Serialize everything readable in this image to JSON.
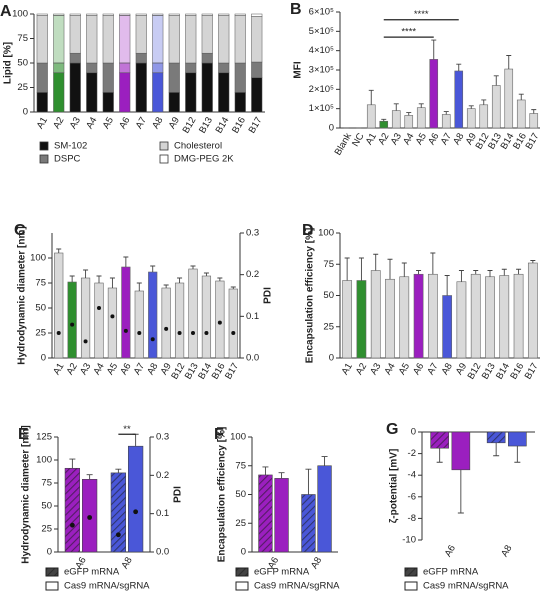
{
  "chart_data": [
    {
      "type": "stacked_bar",
      "panel": "A",
      "ylabel": "Lipid [%]",
      "categories": [
        "A1",
        "A2",
        "A3",
        "A4",
        "A5",
        "A6",
        "A7",
        "A8",
        "A9",
        "B12",
        "B13",
        "B14",
        "B16",
        "B17"
      ],
      "highlight_colors": [
        null,
        "#2f8f2f",
        null,
        null,
        null,
        "#9b1fbf",
        null,
        "#4a57d8",
        null,
        null,
        null,
        null,
        null,
        null
      ],
      "series": [
        {
          "name": "SM-102",
          "color": "#111111",
          "values": [
            20,
            40,
            50,
            40,
            20,
            40,
            50,
            40,
            20,
            40,
            50,
            40,
            20,
            35
          ]
        },
        {
          "name": "DSPC",
          "color": "#7a7a7a",
          "values": [
            30,
            10,
            10,
            10,
            30,
            10,
            10,
            10,
            30,
            10,
            10,
            10,
            30,
            16
          ]
        },
        {
          "name": "Cholesterol",
          "color": "#d4d4d4",
          "values": [
            48.5,
            48.5,
            38.5,
            48.5,
            48.5,
            48.5,
            38.5,
            48.5,
            48.5,
            48.5,
            38.5,
            48.5,
            48.5,
            46.5
          ]
        },
        {
          "name": "DMG-PEG 2K",
          "color": "#ffffff",
          "values": [
            1.5,
            1.5,
            1.5,
            1.5,
            1.5,
            1.5,
            1.5,
            1.5,
            1.5,
            1.5,
            1.5,
            1.5,
            1.5,
            2.5
          ]
        }
      ],
      "ylim": [
        0,
        100
      ],
      "yticks": [
        0,
        25,
        50,
        75,
        100
      ]
    },
    {
      "type": "bar",
      "panel": "B",
      "ylabel": "MFI",
      "categories": [
        "Blank",
        "NC",
        "A1",
        "A2",
        "A3",
        "A4",
        "A5",
        "A6",
        "A7",
        "A8",
        "A9",
        "B12",
        "B13",
        "B14",
        "B16",
        "B17"
      ],
      "values": [
        0,
        0,
        120000,
        35000,
        90000,
        65000,
        105000,
        355000,
        70000,
        295000,
        100000,
        120000,
        220000,
        305000,
        145000,
        75000
      ],
      "errors": [
        0,
        0,
        75000,
        10000,
        35000,
        15000,
        20000,
        100000,
        15000,
        35000,
        15000,
        25000,
        50000,
        70000,
        30000,
        20000
      ],
      "colors": [
        "#d9d9d9",
        "#d9d9d9",
        "#d9d9d9",
        "#2f8f2f",
        "#d9d9d9",
        "#d9d9d9",
        "#d9d9d9",
        "#9b1fbf",
        "#d9d9d9",
        "#4a57d8",
        "#d9d9d9",
        "#d9d9d9",
        "#d9d9d9",
        "#d9d9d9",
        "#d9d9d9",
        "#d9d9d9"
      ],
      "ylim": [
        0,
        600000
      ],
      "yticks": [
        0,
        {
          "value": 100000,
          "label": "1×10⁵"
        },
        {
          "value": 200000,
          "label": "2×10⁵"
        },
        {
          "value": 300000,
          "label": "3×10⁵"
        },
        {
          "value": 400000,
          "label": "4×10⁵"
        },
        {
          "value": 500000,
          "label": "5×10⁵"
        },
        {
          "value": 600000,
          "label": "6×10⁵"
        }
      ],
      "annotations": [
        {
          "text": "****",
          "from": "A2",
          "to": "A8",
          "y": 560000
        },
        {
          "text": "****",
          "from": "A2",
          "to": "A6",
          "y": 470000
        }
      ]
    },
    {
      "type": "bar",
      "panel": "C",
      "ylabel": "Hydrodynamic diameter [nm]",
      "y2label": "PDI",
      "categories": [
        "A1",
        "A2",
        "A3",
        "A4",
        "A5",
        "A6",
        "A7",
        "A8",
        "A9",
        "B12",
        "B13",
        "B14",
        "B16",
        "B17"
      ],
      "values": [
        105,
        76,
        80,
        75,
        70,
        91,
        67,
        86,
        70,
        75,
        89,
        82,
        77,
        69
      ],
      "errors": [
        4,
        6,
        8,
        7,
        10,
        10,
        8,
        6,
        3,
        5,
        3,
        3,
        3,
        2
      ],
      "points": [
        0.06,
        0.08,
        0.04,
        0.12,
        0.1,
        0.065,
        0.06,
        0.045,
        0.07,
        0.06,
        0.06,
        0.06,
        0.085,
        0.06
      ],
      "colors": [
        "#d9d9d9",
        "#2f8f2f",
        "#d9d9d9",
        "#d9d9d9",
        "#d9d9d9",
        "#9b1fbf",
        "#d9d9d9",
        "#4a57d8",
        "#d9d9d9",
        "#d9d9d9",
        "#d9d9d9",
        "#d9d9d9",
        "#d9d9d9",
        "#d9d9d9"
      ],
      "ylim": [
        0,
        125
      ],
      "yticks": [
        0,
        25,
        50,
        75,
        100
      ],
      "y2lim": [
        0,
        0.3
      ],
      "y2ticks": [
        {
          "value": 0,
          "label": "0.0"
        },
        0.1,
        0.2,
        0.3
      ]
    },
    {
      "type": "bar",
      "panel": "D",
      "ylabel": "Encapsulation efficiency [%]",
      "categories": [
        "A1",
        "A2",
        "A3",
        "A4",
        "A5",
        "A6",
        "A7",
        "A8",
        "A9",
        "B12",
        "B13",
        "B14",
        "B16",
        "B17"
      ],
      "values": [
        62,
        62,
        70,
        63,
        65,
        67,
        67,
        50,
        61,
        67,
        65,
        66,
        67,
        76
      ],
      "errors": [
        18,
        18,
        13,
        16,
        11,
        3,
        17,
        16,
        9,
        3,
        5,
        5,
        4,
        2
      ],
      "colors": [
        "#d9d9d9",
        "#2f8f2f",
        "#d9d9d9",
        "#d9d9d9",
        "#d9d9d9",
        "#9b1fbf",
        "#d9d9d9",
        "#4a57d8",
        "#d9d9d9",
        "#d9d9d9",
        "#d9d9d9",
        "#d9d9d9",
        "#d9d9d9",
        "#d9d9d9"
      ],
      "ylim": [
        0,
        100
      ],
      "yticks": [
        0,
        25,
        50,
        75,
        100
      ]
    },
    {
      "type": "grouped_bar",
      "panel": "E",
      "ylabel": "Hydrodynamic diameter [nm]",
      "y2label": "PDI",
      "categories": [
        "A6",
        "A8"
      ],
      "colors": [
        "#9b1fbf",
        "#4a57d8"
      ],
      "series": [
        {
          "name": "eGFP mRNA",
          "pattern": "hatch",
          "values": [
            91,
            86
          ],
          "errors": [
            10,
            4
          ],
          "points": [
            0.07,
            0.045
          ]
        },
        {
          "name": "Cas9 mRNA/sgRNA",
          "pattern": "solid",
          "values": [
            79,
            115
          ],
          "errors": [
            5,
            13
          ],
          "points": [
            0.09,
            0.105
          ]
        }
      ],
      "ylim": [
        0,
        125
      ],
      "yticks": [
        0,
        25,
        50,
        75,
        100,
        125
      ],
      "y2lim": [
        0,
        0.3
      ],
      "y2ticks": [
        {
          "value": 0,
          "label": "0.0"
        },
        0.1,
        0.2,
        0.3
      ],
      "annotations": [
        {
          "text": "**",
          "category": "A8",
          "y": 128
        }
      ]
    },
    {
      "type": "grouped_bar",
      "panel": "F",
      "ylabel": "Encapsulation efficiency [%]",
      "categories": [
        "A6",
        "A8"
      ],
      "colors": [
        "#9b1fbf",
        "#4a57d8"
      ],
      "series": [
        {
          "name": "eGFP mRNA",
          "pattern": "hatch",
          "values": [
            67,
            50
          ],
          "errors": [
            7,
            22
          ]
        },
        {
          "name": "Cas9 mRNA/sgRNA",
          "pattern": "solid",
          "values": [
            64,
            75
          ],
          "errors": [
            5,
            8
          ]
        }
      ],
      "ylim": [
        0,
        100
      ],
      "yticks": [
        0,
        25,
        50,
        75,
        100
      ]
    },
    {
      "type": "grouped_bar",
      "panel": "G",
      "ylabel": "ζ-potential [mV]",
      "categories": [
        "A6",
        "A8"
      ],
      "colors": [
        "#9b1fbf",
        "#4a57d8"
      ],
      "series": [
        {
          "name": "eGFP mRNA",
          "pattern": "hatch",
          "values": [
            -1.5,
            -1.0
          ],
          "errors": [
            1.3,
            1.2
          ]
        },
        {
          "name": "Cas9 mRNA/sgRNA",
          "pattern": "solid",
          "values": [
            -3.5,
            -1.3
          ],
          "errors": [
            4,
            1.5
          ]
        }
      ],
      "ylim": [
        -10,
        0
      ],
      "yticks": [
        0,
        -2,
        -4,
        -6,
        -8,
        -10
      ]
    }
  ]
}
